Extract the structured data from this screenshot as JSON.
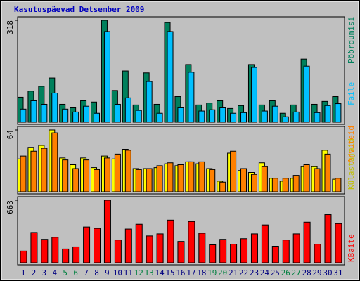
{
  "chart_data": [
    {
      "type": "bar",
      "title": "Kasutuspäevad Detsember 2009",
      "categories": [
        "1",
        "2",
        "3",
        "4",
        "5",
        "6",
        "7",
        "8",
        "9",
        "10",
        "11",
        "12",
        "13",
        "14",
        "15",
        "16",
        "17",
        "18",
        "19",
        "20",
        "21",
        "22",
        "23",
        "24",
        "25",
        "26",
        "27",
        "28",
        "29",
        "30",
        "31"
      ],
      "category_colors": [
        "#000080",
        "#000080",
        "#000080",
        "#000080",
        "#008040",
        "#008040",
        "#000080",
        "#000080",
        "#000080",
        "#000080",
        "#000080",
        "#008040",
        "#008040",
        "#000080",
        "#000080",
        "#000080",
        "#000080",
        "#000080",
        "#008040",
        "#008040",
        "#000080",
        "#000080",
        "#000080",
        "#000080",
        "#000080",
        "#008040",
        "#008040",
        "#000080",
        "#000080",
        "#000080",
        "#000080"
      ],
      "ylim": [
        0,
        318
      ],
      "yticks": [
        318
      ],
      "series": [
        {
          "name": "Pöördumisi",
          "color": "#00805c",
          "values": [
            78,
            97,
            112,
            138,
            56,
            45,
            67,
            63,
            318,
            99,
            160,
            54,
            154,
            56,
            311,
            80,
            180,
            54,
            60,
            67,
            43,
            52,
            180,
            54,
            67,
            28,
            54,
            197,
            56,
            65,
            80
          ]
        },
        {
          "name": "Faile",
          "color": "#00c0ff",
          "values": [
            41,
            67,
            56,
            91,
            41,
            32,
            50,
            28,
            283,
            56,
            76,
            37,
            127,
            28,
            283,
            45,
            156,
            35,
            39,
            45,
            28,
            30,
            171,
            35,
            50,
            17,
            32,
            175,
            30,
            52,
            58
          ]
        }
      ]
    },
    {
      "type": "bar",
      "ylim": [
        0,
        64
      ],
      "yticks": [
        64
      ],
      "series": [
        {
          "name": "Külastajaid",
          "color": "#ffff00",
          "values": [
            34,
            46,
            48,
            64,
            35,
            28,
            35,
            25,
            37,
            34,
            44,
            24,
            24,
            25,
            29,
            27,
            31,
            29,
            24,
            11,
            40,
            22,
            20,
            30,
            14,
            11,
            14,
            26,
            26,
            43,
            13
          ]
        },
        {
          "name": "Arvuteid",
          "color": "#ff8000",
          "values": [
            37,
            42,
            45,
            61,
            33,
            24,
            33,
            23,
            35,
            39,
            43,
            23,
            24,
            27,
            30,
            28,
            31,
            31,
            23,
            10,
            42,
            24,
            18,
            26,
            14,
            14,
            17,
            28,
            24,
            39,
            14
          ]
        }
      ]
    },
    {
      "type": "bar",
      "ylim": [
        0,
        663
      ],
      "yticks": [
        663
      ],
      "series": [
        {
          "name": "KBaite",
          "color": "#ff0000",
          "values": [
            124,
            321,
            248,
            270,
            146,
            168,
            379,
            364,
            663,
            241,
            357,
            408,
            284,
            306,
            452,
            226,
            437,
            313,
            190,
            248,
            197,
            255,
            306,
            401,
            175,
            241,
            306,
            430,
            197,
            510,
            415
          ]
        }
      ]
    }
  ]
}
